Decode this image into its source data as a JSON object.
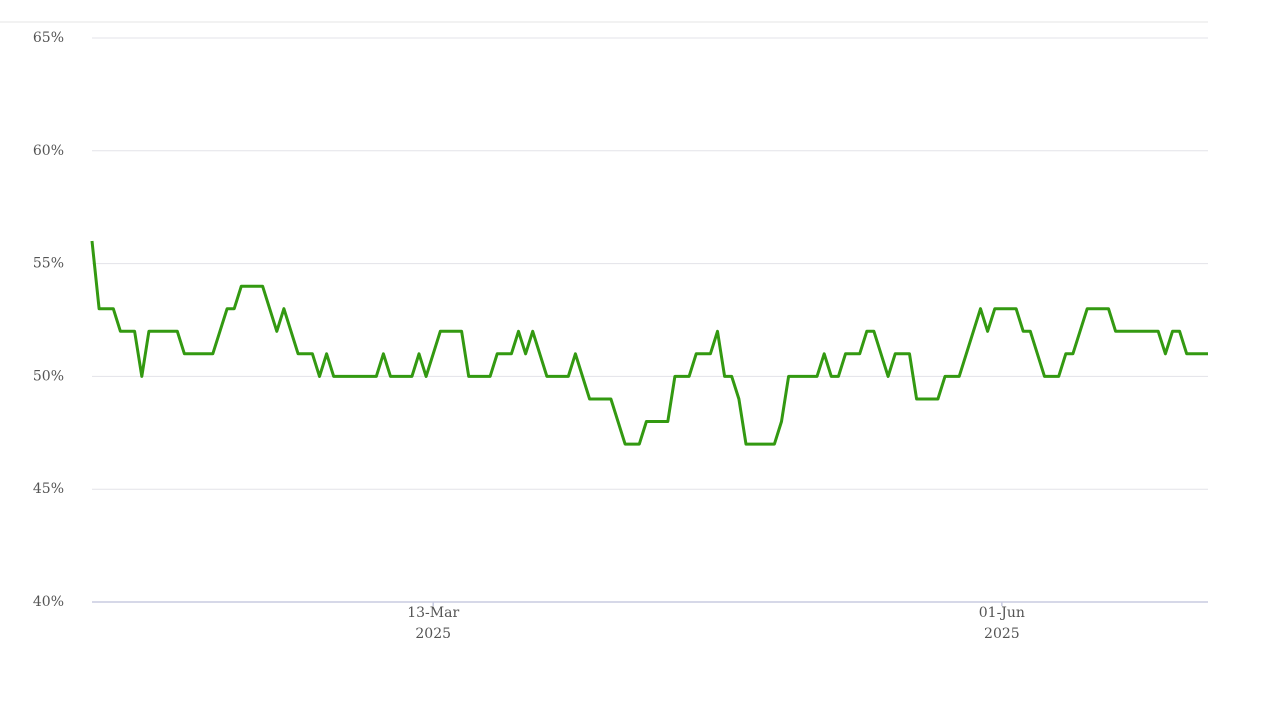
{
  "chart_data": {
    "type": "line",
    "x": [
      "2025-01-24",
      "2025-01-25",
      "2025-01-27",
      "2025-01-28",
      "2025-01-30",
      "2025-01-31",
      "2025-02-01",
      "2025-02-05",
      "2025-02-06",
      "2025-02-10",
      "2025-02-12",
      "2025-02-13",
      "2025-02-14",
      "2025-02-17",
      "2025-02-19",
      "2025-02-20",
      "2025-02-22",
      "2025-02-24",
      "2025-02-25",
      "2025-02-26",
      "2025-02-27",
      "2025-03-05",
      "2025-03-06",
      "2025-03-07",
      "2025-03-10",
      "2025-03-11",
      "2025-03-12",
      "2025-03-14",
      "2025-03-17",
      "2025-03-18",
      "2025-03-21",
      "2025-03-22",
      "2025-03-24",
      "2025-03-25",
      "2025-03-26",
      "2025-03-27",
      "2025-03-29",
      "2025-04-01",
      "2025-04-02",
      "2025-04-04",
      "2025-04-07",
      "2025-04-09",
      "2025-04-11",
      "2025-04-12",
      "2025-04-15",
      "2025-04-16",
      "2025-04-18",
      "2025-04-19",
      "2025-04-21",
      "2025-04-22",
      "2025-04-23",
      "2025-04-24",
      "2025-04-25",
      "2025-04-26",
      "2025-04-30",
      "2025-05-01",
      "2025-05-02",
      "2025-05-06",
      "2025-05-07",
      "2025-05-08",
      "2025-05-09",
      "2025-05-10",
      "2025-05-12",
      "2025-05-13",
      "2025-05-14",
      "2025-05-16",
      "2025-05-17",
      "2025-05-19",
      "2025-05-20",
      "2025-05-23",
      "2025-05-24",
      "2025-05-26",
      "2025-05-29",
      "2025-05-30",
      "2025-05-31",
      "2025-06-03",
      "2025-06-04",
      "2025-06-05",
      "2025-06-07",
      "2025-06-09",
      "2025-06-10",
      "2025-06-11",
      "2025-06-13",
      "2025-06-16",
      "2025-06-17",
      "2025-06-23",
      "2025-06-24",
      "2025-06-25",
      "2025-06-26",
      "2025-06-27",
      "2025-06-30"
    ],
    "series": [
      {
        "color": "#339911",
        "values": [
          56,
          53,
          53,
          52,
          52,
          50,
          52,
          52,
          51,
          51,
          53,
          53,
          54,
          54,
          52,
          53,
          51,
          51,
          50,
          51,
          50,
          50,
          51,
          50,
          50,
          51,
          50,
          52,
          52,
          50,
          50,
          51,
          51,
          52,
          51,
          52,
          50,
          50,
          51,
          49,
          49,
          47,
          47,
          48,
          48,
          50,
          50,
          51,
          51,
          52,
          50,
          50,
          49,
          47,
          47,
          48,
          50,
          50,
          51,
          50,
          50,
          51,
          51,
          52,
          52,
          50,
          51,
          51,
          49,
          49,
          50,
          50,
          53,
          52,
          53,
          53,
          52,
          52,
          50,
          50,
          51,
          51,
          53,
          53,
          52,
          52,
          51,
          52,
          52,
          51,
          51
        ]
      }
    ],
    "xlim": [
      "2025-01-24",
      "2025-06-30"
    ],
    "xticks": [
      {
        "value": "2025-03-13",
        "label": [
          "13-Mar",
          "2025"
        ]
      },
      {
        "value": "2025-06-01",
        "label": [
          "01-Jun",
          "2025"
        ]
      }
    ],
    "ylim": [
      40,
      65
    ],
    "yticks": [
      {
        "value": 40,
        "label": "40%"
      },
      {
        "value": 45,
        "label": "45%"
      },
      {
        "value": 50,
        "label": "50%"
      },
      {
        "value": 55,
        "label": "55%"
      },
      {
        "value": 60,
        "label": "60%"
      },
      {
        "value": 65,
        "label": "65%"
      }
    ],
    "grid": true
  }
}
